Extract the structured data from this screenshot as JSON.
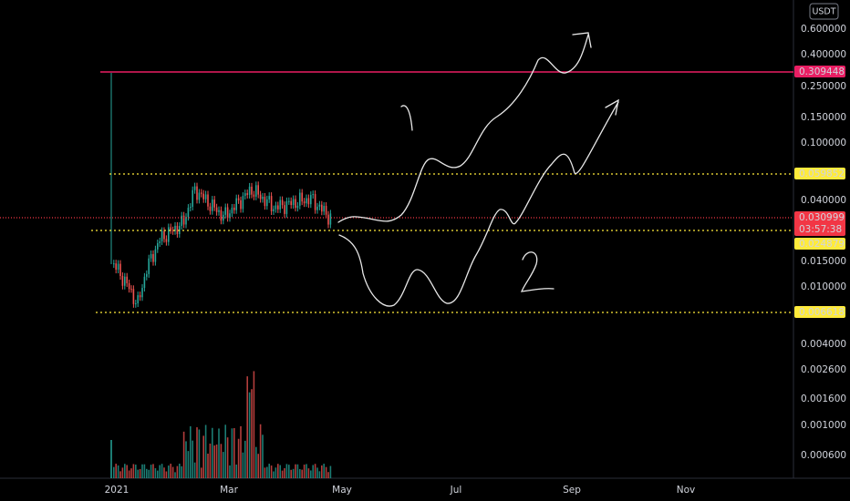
{
  "header": {
    "currency": "USDT"
  },
  "price_axis": {
    "labels": [
      "0.600000",
      "0.400000",
      "0.250000",
      "0.150000",
      "0.100000",
      "0.040000",
      "0.015000",
      "0.010000",
      "0.004000",
      "0.002600",
      "0.001600",
      "0.001000",
      "0.000600"
    ]
  },
  "price_tags": [
    {
      "label": "0.309448",
      "style": "pink"
    },
    {
      "label": "0.059852",
      "style": "yellow"
    },
    {
      "label": "0.030999",
      "style": "red",
      "countdown": "03:57:38"
    },
    {
      "label": "0.024879",
      "style": "yellow"
    },
    {
      "label": "0.006618",
      "style": "yellow"
    }
  ],
  "time_axis": {
    "labels": [
      "2021",
      "Mar",
      "May",
      "Jul",
      "Sep",
      "Nov"
    ]
  }
}
